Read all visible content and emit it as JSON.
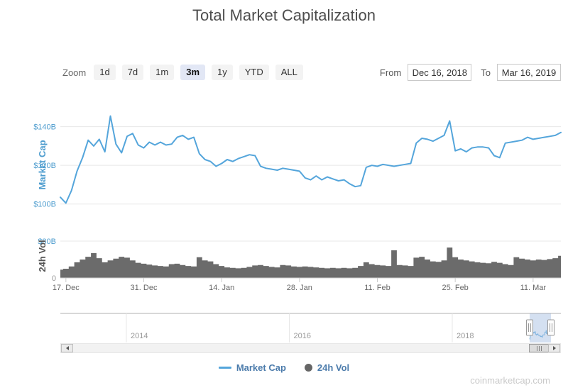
{
  "page_title": "Total Market Capitalization",
  "watermark": "coinmarketcap.com",
  "controls": {
    "zoom_label": "Zoom",
    "zoom_buttons": [
      {
        "label": "1d",
        "selected": false
      },
      {
        "label": "7d",
        "selected": false
      },
      {
        "label": "1m",
        "selected": false
      },
      {
        "label": "3m",
        "selected": true
      },
      {
        "label": "1y",
        "selected": false
      },
      {
        "label": "YTD",
        "selected": false
      },
      {
        "label": "ALL",
        "selected": false
      }
    ],
    "from_label": "From",
    "from_value": "Dec 16, 2018",
    "to_label": "To",
    "to_value": "Mar 16, 2019"
  },
  "colors": {
    "market_cap_line": "#54A5DB",
    "volume_fill": "#6B6B6B",
    "axis_label_blue": "#4D9CCE",
    "legend_text": "#4B7BAB",
    "grid_line": "#E7E7E7",
    "axis_line": "#CCCCCC",
    "navigator_mask": "rgba(102,144,205,0.28)",
    "selected_button_bg": "#E2E7F5"
  },
  "legend": [
    {
      "name": "Market Cap",
      "marker": "line",
      "color": "#54A5DB"
    },
    {
      "name": "24h Vol",
      "marker": "circle",
      "color": "#666666"
    }
  ],
  "chart_data": [
    {
      "type": "line",
      "title": "Market Cap",
      "ylabel": "Market Cap",
      "unit": "USD billions",
      "x_start": "2018-12-16",
      "x_end": "2019-03-16",
      "x_interval": "1 day",
      "n_points": 91,
      "x_tick_labels": [
        "17. Dec",
        "31. Dec",
        "14. Jan",
        "28. Jan",
        "11. Feb",
        "25. Feb",
        "11. Mar"
      ],
      "x_tick_day_offsets": [
        1,
        15,
        29,
        43,
        57,
        71,
        85
      ],
      "y_ticks": [
        {
          "label": "$100B",
          "value": 100
        },
        {
          "label": "$120B",
          "value": 120
        },
        {
          "label": "$140B",
          "value": 140
        }
      ],
      "ylim": [
        90,
        150
      ],
      "grid": true,
      "legend_position": "bottom",
      "series": [
        {
          "name": "Market Cap",
          "color": "#54A5DB",
          "values": [
            103.5,
            100.5,
            107,
            117,
            124,
            133,
            130,
            133.5,
            127,
            145.5,
            131,
            126.5,
            135,
            136.5,
            130.5,
            129,
            132,
            130.5,
            132,
            130.5,
            131,
            134.5,
            135.5,
            133.5,
            134.5,
            126,
            123,
            122,
            119.5,
            121,
            123,
            122,
            123.5,
            124.5,
            125.5,
            125,
            119.5,
            118.5,
            118,
            117.5,
            118.5,
            118,
            117.5,
            117,
            113.5,
            112.5,
            114.5,
            112.5,
            114,
            113,
            112,
            112.5,
            110.5,
            109,
            109.5,
            119,
            120,
            119.5,
            120.5,
            120,
            119.5,
            120,
            120.5,
            121,
            131.5,
            134,
            133.5,
            132.5,
            134,
            135.5,
            143,
            127.5,
            128.5,
            127,
            129,
            129.5,
            129.5,
            129,
            125,
            124,
            131.5,
            132,
            132.5,
            133,
            134.5,
            133.5,
            134,
            134.5,
            135,
            135.5,
            137
          ]
        }
      ]
    },
    {
      "type": "area",
      "title": "24h Vol",
      "ylabel": "24h Vol",
      "unit": "USD billions",
      "x_start": "2018-12-16",
      "x_end": "2019-03-16",
      "x_interval": "1 day",
      "n_points": 91,
      "y_ticks": [
        {
          "label": "0",
          "value": 0
        },
        {
          "label": "$80B",
          "value": 80
        }
      ],
      "ylim": [
        0,
        80
      ],
      "grid": true,
      "series": [
        {
          "name": "24h Vol",
          "color": "#6B6B6B",
          "values": [
            18,
            20,
            25,
            34,
            40,
            46,
            54,
            43,
            34,
            38,
            42,
            46,
            44,
            38,
            33,
            31,
            29,
            27,
            26,
            25,
            30,
            31,
            28,
            26,
            25,
            45,
            38,
            36,
            30,
            26,
            23,
            22,
            21,
            22,
            24,
            27,
            28,
            26,
            24,
            23,
            28,
            27,
            25,
            24,
            25,
            24,
            23,
            22,
            21,
            22,
            21,
            22,
            21,
            22,
            26,
            34,
            30,
            28,
            27,
            26,
            60,
            28,
            27,
            26,
            44,
            46,
            40,
            36,
            35,
            38,
            66,
            45,
            40,
            38,
            36,
            34,
            33,
            32,
            35,
            33,
            30,
            28,
            45,
            42,
            40,
            38,
            40,
            39,
            41,
            43,
            48
          ]
        }
      ]
    },
    {
      "type": "navigator",
      "year_labels": [
        "2014",
        "2016",
        "2018"
      ],
      "selected_from": "Dec 16, 2018",
      "selected_to": "Mar 16, 2019"
    }
  ]
}
